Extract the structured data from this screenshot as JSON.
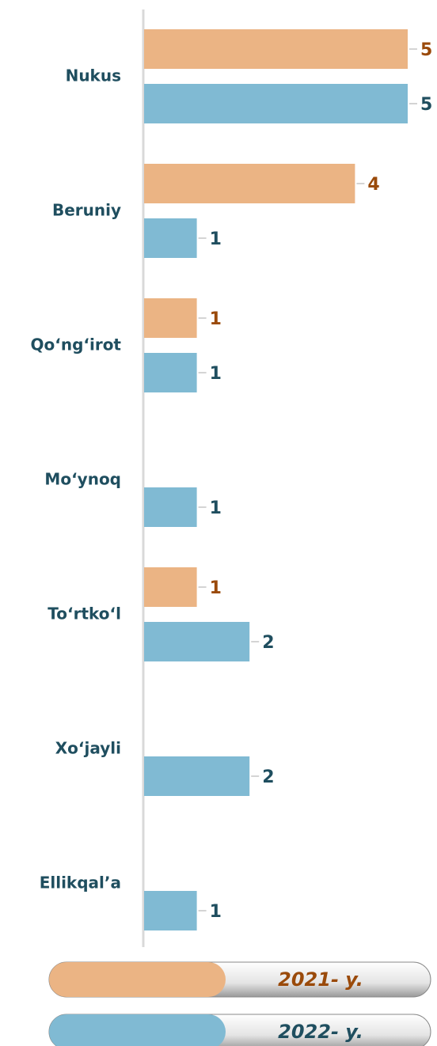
{
  "chart_data": {
    "type": "bar",
    "orientation": "horizontal",
    "categories": [
      "Nukus",
      "Beruniy",
      "Qo‘ng‘irot",
      "Mo‘ynoq",
      "To‘rtko‘l",
      "Xo‘jayli",
      "Ellikqal’a"
    ],
    "series": [
      {
        "name": "2021- y.",
        "color": "#ebb484",
        "label_color": "#9a4a0a",
        "values": [
          5,
          4,
          1,
          null,
          1,
          null,
          null
        ]
      },
      {
        "name": "2022- y.",
        "color": "#80bad3",
        "label_color": "#1f4e5f",
        "values": [
          5,
          1,
          1,
          1,
          2,
          2,
          1
        ]
      }
    ],
    "xlim": [
      0,
      5
    ]
  }
}
